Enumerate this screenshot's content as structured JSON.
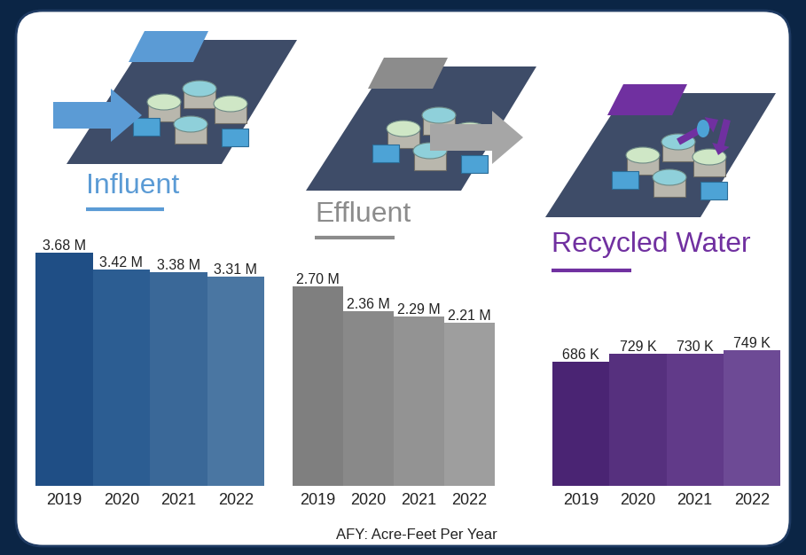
{
  "chart_data": [
    {
      "type": "bar",
      "title": "Influent",
      "color": "#5b9bd5",
      "categories": [
        "2019",
        "2020",
        "2021",
        "2022"
      ],
      "values": [
        3680000,
        3420000,
        3380000,
        3310000
      ],
      "value_labels": [
        "3.68 M",
        "3.42 M",
        "3.38 M",
        "3.31 M"
      ],
      "colors": [
        "#1f4e85",
        "#2c5d92",
        "#3a6898",
        "#4a76a2"
      ],
      "ylim": [
        0,
        3920000
      ],
      "data_labels": true,
      "tick_labels": "x"
    },
    {
      "type": "bar",
      "title": "Effluent",
      "color": "#8c8c8c",
      "categories": [
        "2019",
        "2020",
        "2021",
        "2022"
      ],
      "values": [
        2700000,
        2360000,
        2290000,
        2210000
      ],
      "value_labels": [
        "2.70 M",
        "2.36 M",
        "2.29 M",
        "2.21 M"
      ],
      "colors": [
        "#7f7f7f",
        "#898989",
        "#939393",
        "#9e9e9e"
      ],
      "ylim": [
        0,
        3360000
      ],
      "data_labels": true,
      "tick_labels": "x"
    },
    {
      "type": "bar",
      "title": "Recycled Water",
      "color": "#7030a0",
      "categories": [
        "2019",
        "2020",
        "2021",
        "2022"
      ],
      "values": [
        686000,
        729000,
        730000,
        749000
      ],
      "value_labels": [
        "686 K",
        "729 K",
        "730 K",
        "749 K"
      ],
      "colors": [
        "#4a2473",
        "#56307e",
        "#613a89",
        "#6d4a95"
      ],
      "ylim": [
        0,
        1370000
      ],
      "data_labels": true,
      "tick_labels": "x"
    }
  ],
  "footnote": "AFY: Acre-Feet Per Year"
}
